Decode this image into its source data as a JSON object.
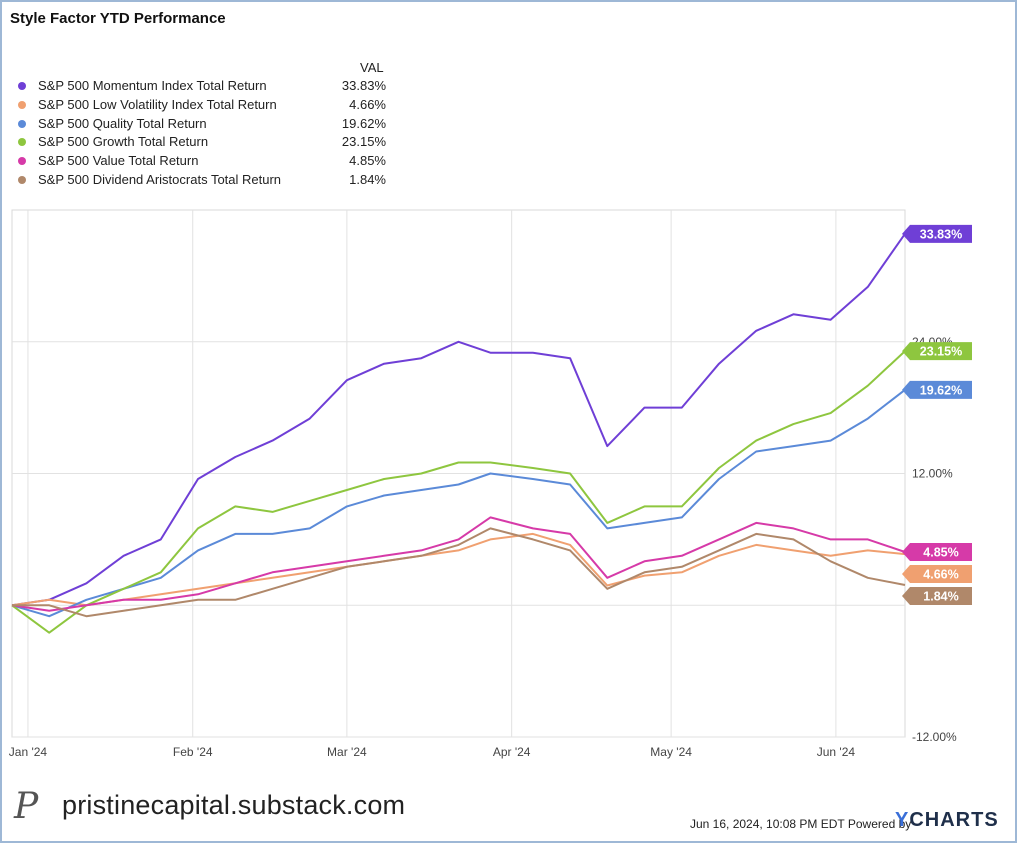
{
  "chart_data": {
    "type": "line",
    "title": "Style Factor YTD Performance",
    "legend_header": "VAL",
    "legend_placement": "top-left",
    "ylim": [
      -12,
      36
    ],
    "yticks": [
      "24.00%",
      "12.00%",
      "-12.00%"
    ],
    "ytick_values": [
      24,
      12,
      -12
    ],
    "xlim": [
      "2023-12-29",
      "2024-06-14"
    ],
    "xticks": [
      {
        "date": "2024-01-01",
        "label": "Jan '24"
      },
      {
        "date": "2024-02-01",
        "label": "Feb '24"
      },
      {
        "date": "2024-03-01",
        "label": "Mar '24"
      },
      {
        "date": "2024-04-01",
        "label": "Apr '24"
      },
      {
        "date": "2024-05-01",
        "label": "May '24"
      },
      {
        "date": "2024-06-01",
        "label": "Jun '24"
      }
    ],
    "grid": true,
    "x": [
      "2023-12-29",
      "2024-01-05",
      "2024-01-12",
      "2024-01-19",
      "2024-01-26",
      "2024-02-02",
      "2024-02-09",
      "2024-02-16",
      "2024-02-23",
      "2024-03-01",
      "2024-03-08",
      "2024-03-15",
      "2024-03-22",
      "2024-03-28",
      "2024-04-05",
      "2024-04-12",
      "2024-04-19",
      "2024-04-26",
      "2024-05-03",
      "2024-05-10",
      "2024-05-17",
      "2024-05-24",
      "2024-05-31",
      "2024-06-07",
      "2024-06-14"
    ],
    "series": [
      {
        "name": "S&P 500 Momentum Index Total Return",
        "display_value": "33.83%",
        "color": "#6f3fd6",
        "values": [
          0,
          0.5,
          2.0,
          4.5,
          6.0,
          11.5,
          13.5,
          15.0,
          17.0,
          20.5,
          22.0,
          22.5,
          24.0,
          23.0,
          23.0,
          22.5,
          14.5,
          18.0,
          18.0,
          22.0,
          25.0,
          26.5,
          26.0,
          29.0,
          33.83
        ]
      },
      {
        "name": "S&P 500 Low Volatility Index Total Return",
        "display_value": "4.66%",
        "color": "#f0a070",
        "values": [
          0,
          0.5,
          0,
          0.5,
          1.0,
          1.5,
          2.0,
          2.5,
          3.0,
          3.5,
          4.0,
          4.5,
          5.0,
          6.0,
          6.5,
          5.5,
          1.8,
          2.7,
          3.0,
          4.5,
          5.5,
          5.0,
          4.5,
          5.0,
          4.66
        ]
      },
      {
        "name": "S&P 500 Quality Total Return",
        "display_value": "19.62%",
        "color": "#5b8ad8",
        "values": [
          0,
          -1.0,
          0.5,
          1.5,
          2.5,
          5.0,
          6.5,
          6.5,
          7.0,
          9.0,
          10.0,
          10.5,
          11.0,
          12.0,
          11.5,
          11.0,
          7.0,
          7.5,
          8.0,
          11.5,
          14.0,
          14.5,
          15.0,
          17.0,
          19.62
        ]
      },
      {
        "name": "S&P 500 Growth Total Return",
        "display_value": "23.15%",
        "color": "#8ec63f",
        "values": [
          0,
          -2.5,
          0,
          1.5,
          3.0,
          7.0,
          9.0,
          8.5,
          9.5,
          10.5,
          11.5,
          12.0,
          13.0,
          13.0,
          12.5,
          12.0,
          7.5,
          9.0,
          9.0,
          12.5,
          15.0,
          16.5,
          17.5,
          20.0,
          23.15
        ]
      },
      {
        "name": "S&P 500 Value Total Return",
        "display_value": "4.85%",
        "color": "#d63aa8",
        "values": [
          0,
          -0.5,
          0,
          0.5,
          0.5,
          1.0,
          2.0,
          3.0,
          3.5,
          4.0,
          4.5,
          5.0,
          6.0,
          8.0,
          7.0,
          6.5,
          2.5,
          4.0,
          4.5,
          6.0,
          7.5,
          7.0,
          6.0,
          6.0,
          4.85
        ]
      },
      {
        "name": "S&P 500 Dividend Aristocrats Total Return",
        "display_value": "1.84%",
        "color": "#b0886a",
        "values": [
          0,
          0,
          -1.0,
          -0.5,
          0,
          0.5,
          0.5,
          1.5,
          2.5,
          3.5,
          4.0,
          4.5,
          5.5,
          7.0,
          6.0,
          5.0,
          1.5,
          3.0,
          3.5,
          5.0,
          6.5,
          6.0,
          4.0,
          2.5,
          1.84
        ]
      }
    ]
  },
  "footer": {
    "logo_glyph": "P",
    "site": "pristinecapital.substack.com",
    "date": "Jun 16, 2024, 10:08 PM EDT Powered by",
    "brand_y": "Y",
    "brand_rest": "CHARTS"
  }
}
